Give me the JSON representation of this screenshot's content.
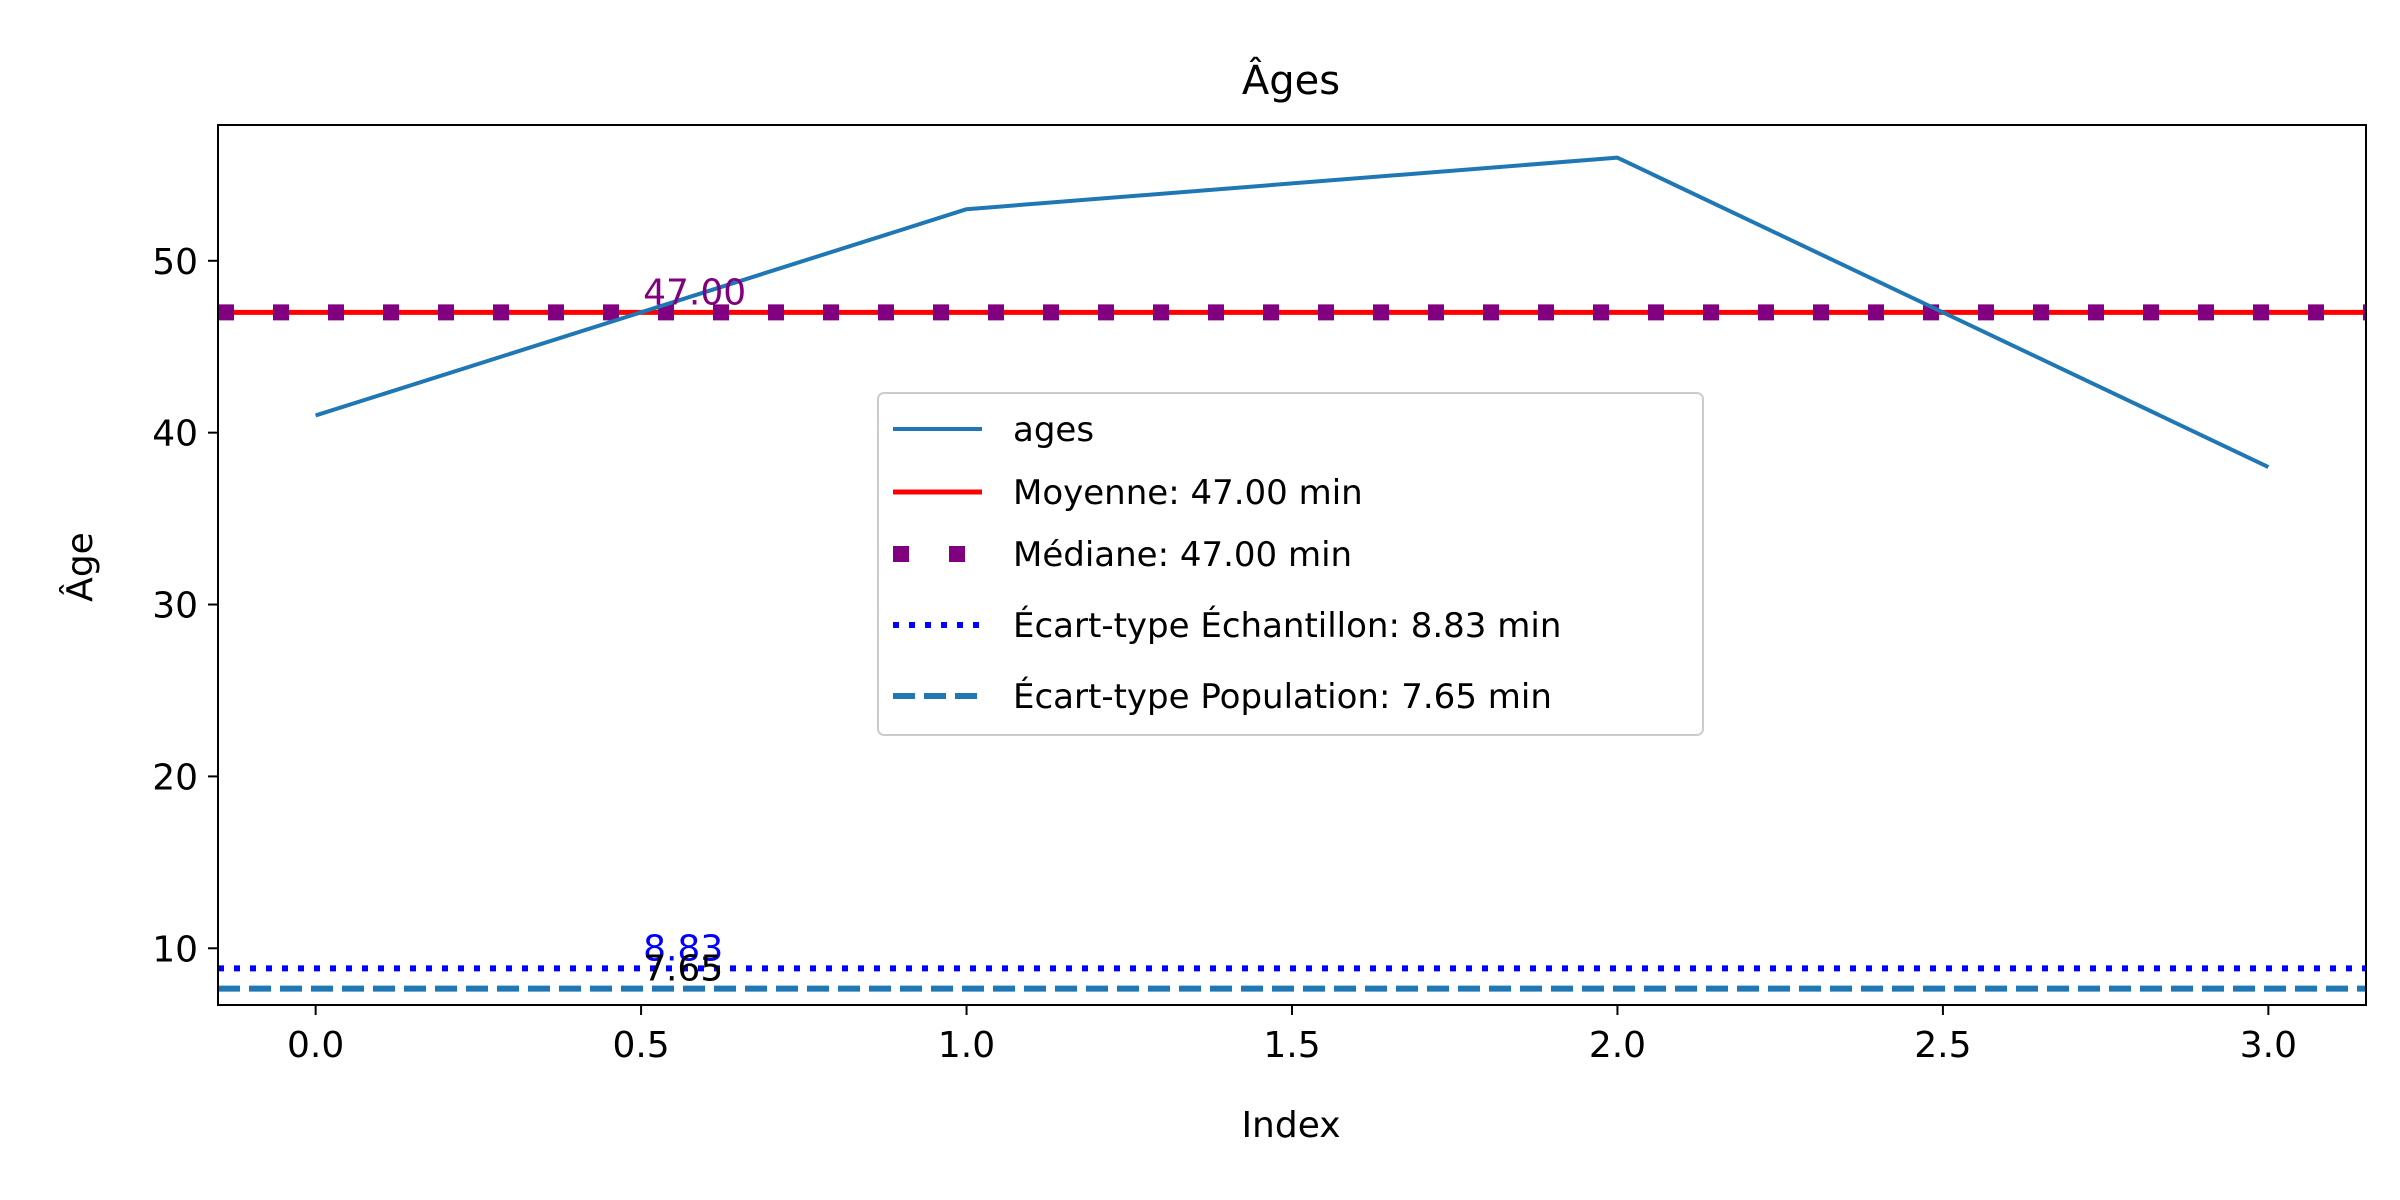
{
  "chart_data": {
    "type": "line",
    "title": "Âges",
    "xlabel": "Index",
    "ylabel": "Âge",
    "xlim": [
      -0.15,
      3.15
    ],
    "ylim": [
      6.7,
      57.9
    ],
    "xticks": [
      "0.0",
      "0.5",
      "1.0",
      "1.5",
      "2.0",
      "2.5",
      "3.0"
    ],
    "yticks": [
      "10",
      "20",
      "30",
      "40",
      "50"
    ],
    "grid": false,
    "legend_position": "center",
    "series": [
      {
        "name": "ages",
        "x": [
          0,
          1,
          2,
          3
        ],
        "y": [
          41,
          53,
          56,
          38
        ],
        "color": "#1f77b4",
        "style": "solid"
      }
    ],
    "hlines": [
      {
        "name": "Moyenne: 47.00 min",
        "y": 47.0,
        "color": "#ff0000",
        "style": "solid"
      },
      {
        "name": "Médiane: 47.00 min",
        "y": 47.0,
        "color": "#800080",
        "style": "square-dotted"
      },
      {
        "name": "Écart-type Échantillon: 8.83 min",
        "y": 8.83,
        "color": "#0000ff",
        "style": "dotted"
      },
      {
        "name": "Écart-type Population: 7.65 min",
        "y": 7.65,
        "color": "#1f77b4",
        "style": "dashed"
      }
    ],
    "annotations": [
      {
        "text": "47.00",
        "x": 0.5,
        "y": 47.0,
        "color": "#800080"
      },
      {
        "text": "8.83",
        "x": 0.5,
        "y": 8.83,
        "color": "#0000ff"
      },
      {
        "text": "7.65",
        "x": 0.5,
        "y": 7.65,
        "color": "#000000"
      }
    ]
  }
}
